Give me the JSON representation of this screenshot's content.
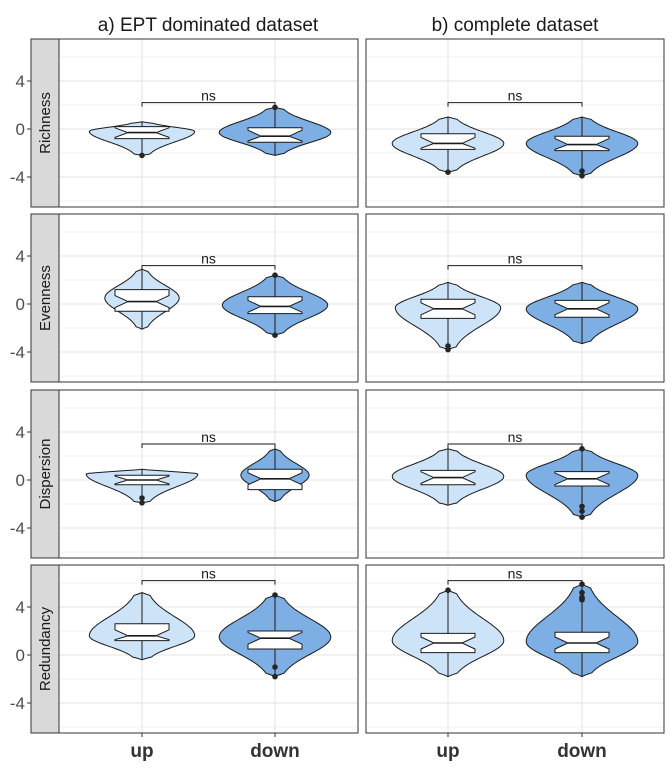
{
  "chart_data": {
    "type": "violin",
    "column_titles": [
      "a) EPT dominated dataset",
      "b) complete dataset"
    ],
    "row_titles": [
      "Richness",
      "Evenness",
      "Dispersion",
      "Redundancy"
    ],
    "categories": [
      "up",
      "down"
    ],
    "yticks": [
      -4,
      0,
      4
    ],
    "ylim": [
      -6.5,
      7.5
    ],
    "significance_label": "ns",
    "fill_colors": {
      "up": "#cce3f8",
      "down": "#7daee4"
    },
    "panels": [
      {
        "row": "Richness",
        "col": "a) EPT dominated dataset",
        "sig_y": 2.2,
        "groups": [
          {
            "cat": "up",
            "range": [
              -2.2,
              0.6
            ],
            "peak": -0.2,
            "width": 0.85,
            "box": [
              -0.8,
              -0.3,
              0.2
            ],
            "outliers": [
              -2.2
            ]
          },
          {
            "cat": "down",
            "range": [
              -2.2,
              1.8
            ],
            "peak": -0.3,
            "width": 0.9,
            "box": [
              -1.1,
              -0.6,
              0.1
            ],
            "outliers": [
              1.8
            ]
          }
        ]
      },
      {
        "row": "Richness",
        "col": "b) complete dataset",
        "sig_y": 2.2,
        "groups": [
          {
            "cat": "up",
            "range": [
              -3.6,
              1.0
            ],
            "peak": -1.2,
            "width": 0.9,
            "box": [
              -1.7,
              -1.2,
              -0.4
            ],
            "outliers": [
              -3.6
            ]
          },
          {
            "cat": "down",
            "range": [
              -3.9,
              1.0
            ],
            "peak": -1.2,
            "width": 0.9,
            "box": [
              -1.8,
              -1.3,
              -0.6
            ],
            "outliers": [
              -3.5,
              -3.9
            ]
          }
        ]
      },
      {
        "row": "Evenness",
        "col": "a) EPT dominated dataset",
        "sig_y": 3.2,
        "groups": [
          {
            "cat": "up",
            "range": [
              -2.1,
              2.9
            ],
            "peak": 0.5,
            "width": 0.6,
            "box": [
              -0.6,
              0.2,
              1.2
            ],
            "outliers": []
          },
          {
            "cat": "down",
            "range": [
              -2.6,
              2.4
            ],
            "peak": -0.1,
            "width": 0.85,
            "box": [
              -0.8,
              -0.2,
              0.6
            ],
            "outliers": [
              2.4,
              -2.6
            ]
          }
        ]
      },
      {
        "row": "Evenness",
        "col": "b) complete dataset",
        "sig_y": 3.2,
        "groups": [
          {
            "cat": "up",
            "range": [
              -3.8,
              1.8
            ],
            "peak": -0.3,
            "width": 0.85,
            "box": [
              -1.2,
              -0.4,
              0.4
            ],
            "outliers": [
              -3.5,
              -3.8
            ]
          },
          {
            "cat": "down",
            "range": [
              -3.3,
              1.8
            ],
            "peak": -0.4,
            "width": 0.9,
            "box": [
              -1.1,
              -0.4,
              0.3
            ],
            "outliers": []
          }
        ]
      },
      {
        "row": "Dispersion",
        "col": "a) EPT dominated dataset",
        "sig_y": 3.0,
        "groups": [
          {
            "cat": "up",
            "range": [
              -1.9,
              0.9
            ],
            "peak": 0.5,
            "width": 0.9,
            "box": [
              -0.4,
              0.0,
              0.4
            ],
            "outliers": [
              -1.5,
              -1.9
            ]
          },
          {
            "cat": "down",
            "range": [
              -1.8,
              2.6
            ],
            "peak": 0.4,
            "width": 0.55,
            "box": [
              -0.8,
              0.1,
              0.9
            ],
            "outliers": []
          }
        ]
      },
      {
        "row": "Dispersion",
        "col": "b) complete dataset",
        "sig_y": 3.0,
        "groups": [
          {
            "cat": "up",
            "range": [
              -2.1,
              2.6
            ],
            "peak": 0.3,
            "width": 0.9,
            "box": [
              -0.4,
              0.2,
              0.8
            ],
            "outliers": []
          },
          {
            "cat": "down",
            "range": [
              -3.1,
              2.6
            ],
            "peak": 0.4,
            "width": 0.9,
            "box": [
              -0.5,
              0.1,
              0.7
            ],
            "outliers": [
              2.6,
              -2.2,
              -2.6,
              -3.1
            ]
          }
        ]
      },
      {
        "row": "Redundancy",
        "col": "a) EPT dominated dataset",
        "sig_y": 6.2,
        "groups": [
          {
            "cat": "up",
            "range": [
              -0.4,
              5.2
            ],
            "peak": 1.6,
            "width": 0.85,
            "box": [
              1.2,
              1.6,
              2.6
            ],
            "outliers": []
          },
          {
            "cat": "down",
            "range": [
              -1.8,
              5.0
            ],
            "peak": 1.5,
            "width": 0.9,
            "box": [
              0.5,
              1.4,
              2.0
            ],
            "outliers": [
              5.0,
              -1.0,
              -1.8
            ]
          }
        ]
      },
      {
        "row": "Redundancy",
        "col": "b) complete dataset",
        "sig_y": 6.2,
        "groups": [
          {
            "cat": "up",
            "range": [
              -1.8,
              5.4
            ],
            "peak": 1.2,
            "width": 0.9,
            "box": [
              0.2,
              1.0,
              1.8
            ],
            "outliers": [
              5.4
            ]
          },
          {
            "cat": "down",
            "range": [
              -1.8,
              5.9
            ],
            "peak": 1.1,
            "width": 0.9,
            "box": [
              0.2,
              1.0,
              1.9
            ],
            "outliers": [
              4.6,
              4.7,
              4.8,
              5.2,
              5.9
            ]
          }
        ]
      }
    ]
  }
}
